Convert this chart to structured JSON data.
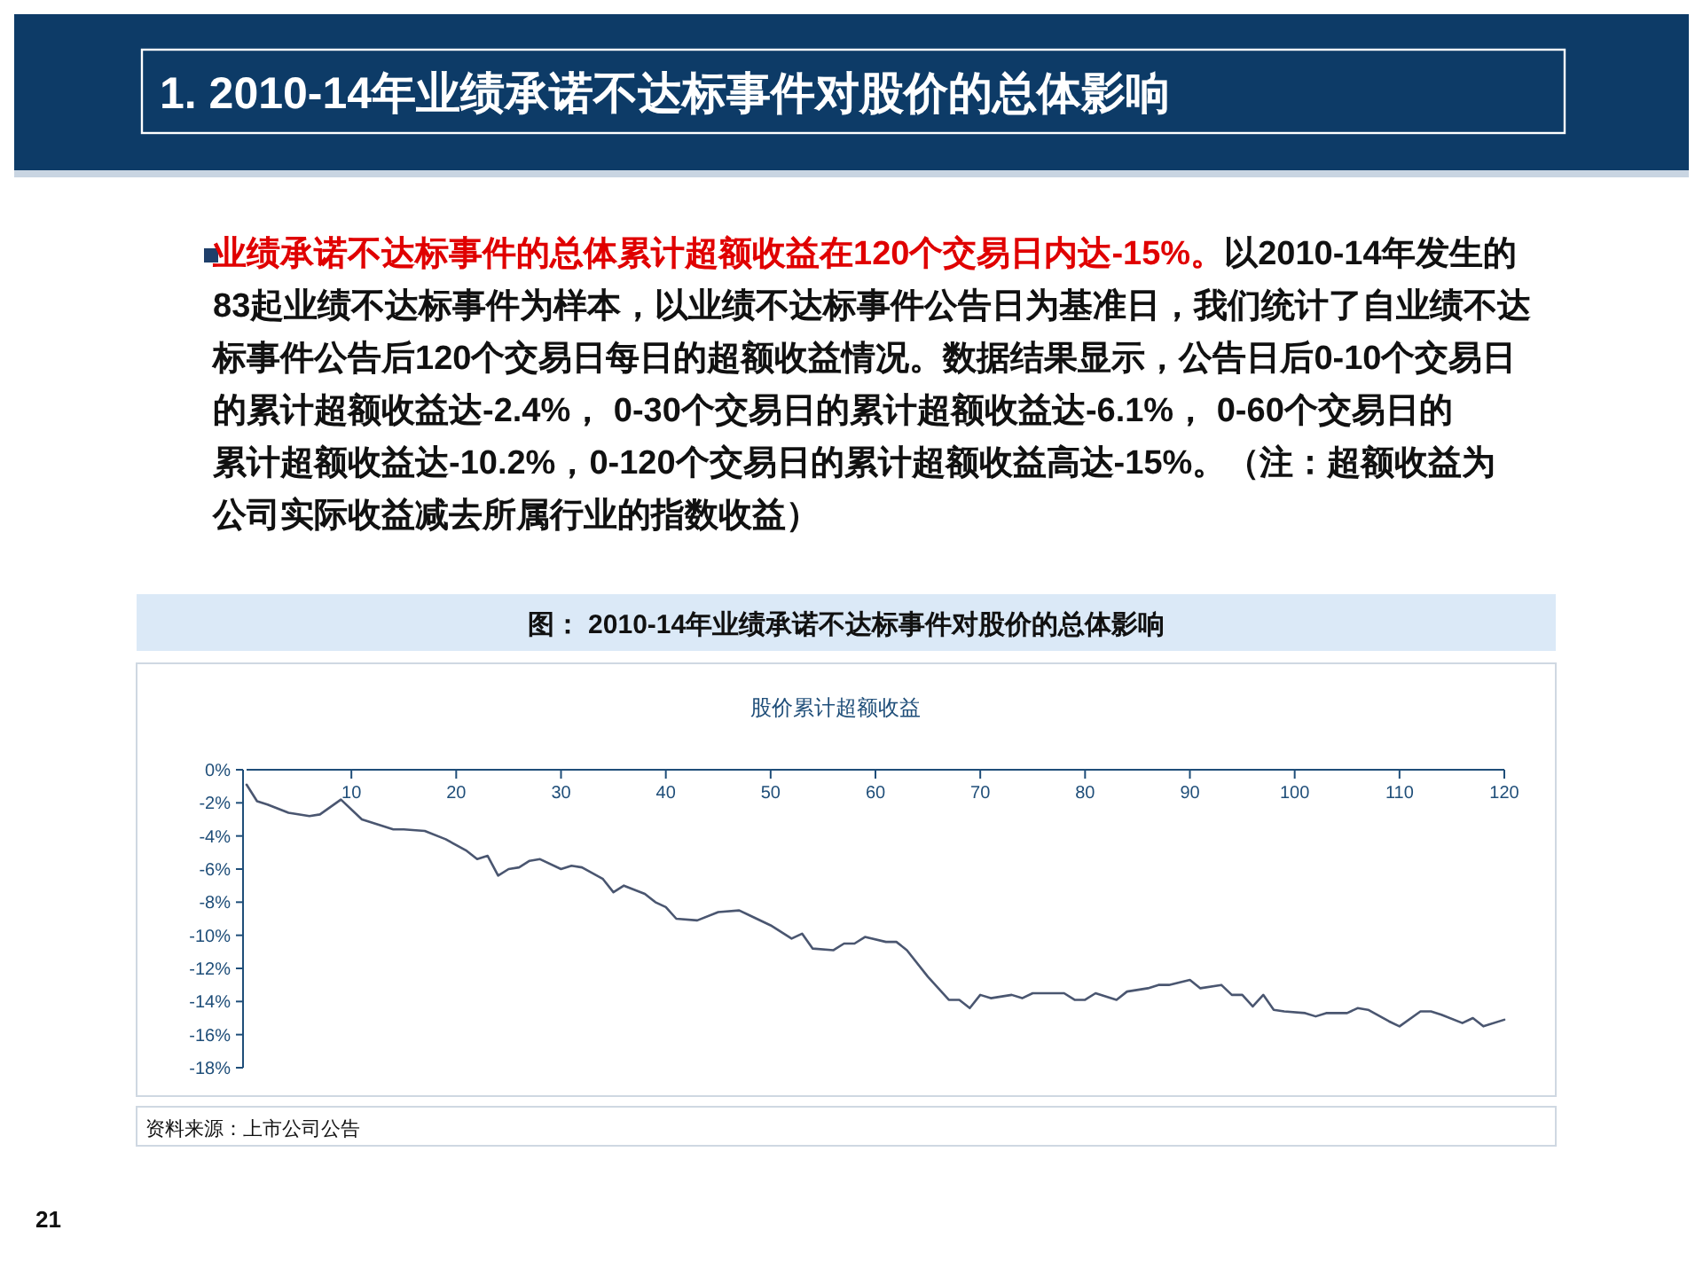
{
  "chart_data": {
    "type": "line",
    "title": "股价累计超额收益",
    "annotations": [
      "1. 2010-14年业绩承诺不达标事件对股价的总体影响",
      "业绩承诺不达标事件的总体累计超额收益在120个交易日内达-15%。",
      "以2010-14年发生的83起业绩不达标事件为样本，以业绩不达标事件公告日为基准日，我们统计了自业绩不达标事件公告后120个交易日每日的超额收益情况。数据结果显示，公告日后0-10个交易日的累计超额收益达-2.4%， 0-30个交易日的累计超额收益达-6.1%， 0-60个交易日的累计超额收益达-10.2%，0-120个交易日的累计超额收益高达-15%。（注：超额收益为公司实际收益减去所属行业的指数收益）",
      "图： 2010-14年业绩承诺不达标事件对股价的总体影响",
      "资料来源：上市公司公告",
      "21"
    ],
    "series": [
      {
        "color": "#4a5670",
        "x": [
          0,
          1,
          2,
          4,
          6,
          7,
          9,
          11,
          14,
          15,
          17,
          19,
          21,
          22,
          23,
          24,
          25,
          26,
          27,
          28,
          30,
          31,
          32,
          34,
          35,
          36,
          38,
          39,
          40,
          41,
          43,
          45,
          47,
          48,
          50,
          52,
          53,
          54,
          56,
          57,
          58,
          59,
          61,
          62,
          63,
          65,
          67,
          68,
          69,
          70,
          71,
          73,
          74,
          75,
          78,
          79,
          80,
          81,
          83,
          84,
          86,
          87,
          88,
          90,
          91,
          93,
          94,
          95,
          96,
          97,
          98,
          99,
          101,
          102,
          103,
          105,
          106,
          107,
          109,
          110,
          112,
          113,
          114,
          116,
          117,
          118,
          120
        ],
        "values": [
          -0.9,
          -1.9,
          -2.1,
          -2.6,
          -2.8,
          -2.7,
          -1.8,
          -3.0,
          -3.6,
          -3.6,
          -3.7,
          -4.2,
          -4.9,
          -5.4,
          -5.2,
          -6.4,
          -6.0,
          -5.9,
          -5.5,
          -5.4,
          -6.0,
          -5.8,
          -5.9,
          -6.6,
          -7.4,
          -7.0,
          -7.5,
          -8.0,
          -8.3,
          -9.0,
          -9.1,
          -8.6,
          -8.5,
          -8.8,
          -9.4,
          -10.2,
          -9.9,
          -10.8,
          -10.9,
          -10.5,
          -10.5,
          -10.1,
          -10.4,
          -10.4,
          -10.9,
          -12.5,
          -13.9,
          -13.9,
          -14.4,
          -13.6,
          -13.8,
          -13.6,
          -13.8,
          -13.5,
          -13.5,
          -13.9,
          -13.9,
          -13.5,
          -13.9,
          -13.4,
          -13.2,
          -13.0,
          -13.0,
          -12.7,
          -13.2,
          -13.0,
          -13.6,
          -13.6,
          -14.3,
          -13.6,
          -14.5,
          -14.6,
          -14.7,
          -14.9,
          -14.7,
          -14.7,
          -14.4,
          -14.5,
          -15.2,
          -15.5,
          -14.6,
          -14.6,
          -14.8,
          -15.3,
          -15.0,
          -15.5,
          -15.1
        ]
      }
    ],
    "xlim": [
      0,
      120
    ],
    "xticks": [
      10,
      20,
      30,
      40,
      50,
      60,
      70,
      80,
      90,
      100,
      110,
      120
    ],
    "ylim": [
      -18,
      0
    ],
    "yticks": [
      {
        "value": 0,
        "label": "0%"
      },
      {
        "value": -2,
        "label": "-2%"
      },
      {
        "value": -4,
        "label": "-4%"
      },
      {
        "value": -6,
        "label": "-6%"
      },
      {
        "value": -8,
        "label": "-8%"
      },
      {
        "value": -10,
        "label": "-10%"
      },
      {
        "value": -12,
        "label": "-12%"
      },
      {
        "value": -14,
        "label": "-14%"
      },
      {
        "value": -16,
        "label": "-16%"
      },
      {
        "value": -18,
        "label": "-18%"
      }
    ],
    "marker": "none",
    "line_style": "solid"
  }
}
